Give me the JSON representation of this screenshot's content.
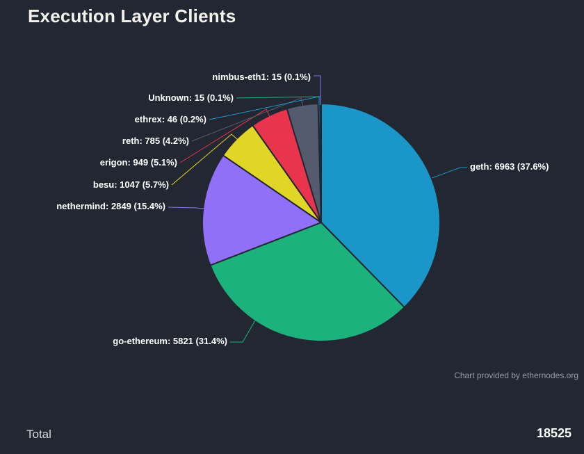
{
  "page": {
    "title": "Execution Layer Clients"
  },
  "chart_data": {
    "type": "pie",
    "title": "Execution Layer Clients",
    "legend": "none",
    "label_placement": "outside-with-connectors",
    "start_angle_deg": 0,
    "direction": "clockwise",
    "background": "#232732",
    "border_color": "#232732",
    "colors": [
      "#1a96c8",
      "#1bb27e",
      "#9070f7",
      "#e0d626",
      "#e8344c",
      "#555b6e"
    ],
    "slices": [
      {
        "label": "geth",
        "value": 6963,
        "pct": "37.6",
        "label_text": "geth: 6963 (37.6%)"
      },
      {
        "label": "go-ethereum",
        "value": 5821,
        "pct": "31.4",
        "label_text": "go-ethereum: 5821 (31.4%)"
      },
      {
        "label": "nethermind",
        "value": 2849,
        "pct": "15.4",
        "label_text": "nethermind: 2849 (15.4%)"
      },
      {
        "label": "besu",
        "value": 1047,
        "pct": "5.7",
        "label_text": "besu: 1047 (5.7%)"
      },
      {
        "label": "erigon",
        "value": 949,
        "pct": "5.1",
        "label_text": "erigon: 949 (5.1%)"
      },
      {
        "label": "reth",
        "value": 785,
        "pct": "4.2",
        "label_text": "reth: 785 (4.2%)"
      },
      {
        "label": "ethrex",
        "value": 46,
        "pct": "0.2",
        "label_text": "ethrex: 46 (0.2%)"
      },
      {
        "label": "Unknown",
        "value": 15,
        "pct": "0.1",
        "label_text": "Unknown: 15 (0.1%)"
      },
      {
        "label": "nimbus-eth1",
        "value": 15,
        "pct": "0.1",
        "label_text": "nimbus-eth1: 15 (0.1%)"
      }
    ]
  },
  "credit": {
    "text": "Chart provided by ethernodes.org"
  },
  "footer": {
    "total_label": "Total",
    "total_value": "18525"
  }
}
